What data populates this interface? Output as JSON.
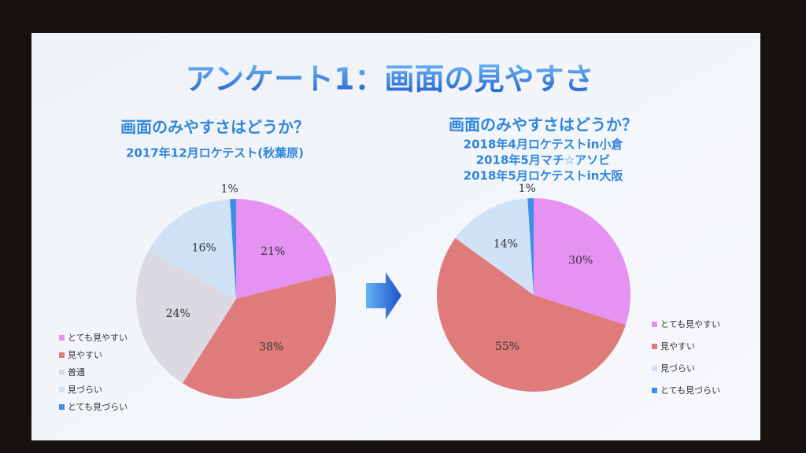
{
  "slide_title": "アンケート1：画面の見やすさ",
  "chart_data": [
    {
      "type": "pie",
      "title": "画面のみやすさはどうか？",
      "subtitle": [
        "2017年12月ロケテスト(秋葉原)"
      ],
      "categories": [
        "とても見やすい",
        "見やすい",
        "普通",
        "見づらい",
        "とても見づらい"
      ],
      "values": [
        21,
        38,
        24,
        16,
        1
      ],
      "value_labels": [
        "21%",
        "38%",
        "24%",
        "16%",
        "1%"
      ],
      "colors": [
        "#e592f2",
        "#e07b7b",
        "#dcd9e2",
        "#cfe2f6",
        "#3d8fe8"
      ]
    },
    {
      "type": "pie",
      "title": "画面のみやすさはどうか？",
      "subtitle": [
        "2018年4月ロケテストin小倉",
        "2018年5月マチ☆アソビ",
        "2018年5月ロケテストin大阪"
      ],
      "categories": [
        "とても見やすい",
        "見やすい",
        "見づらい",
        "とても見づらい"
      ],
      "values": [
        30,
        55,
        14,
        1
      ],
      "value_labels": [
        "30%",
        "55%",
        "14%",
        "1%"
      ],
      "colors": [
        "#e592f2",
        "#e07b7b",
        "#cfe2f6",
        "#3d8fe8"
      ]
    }
  ]
}
